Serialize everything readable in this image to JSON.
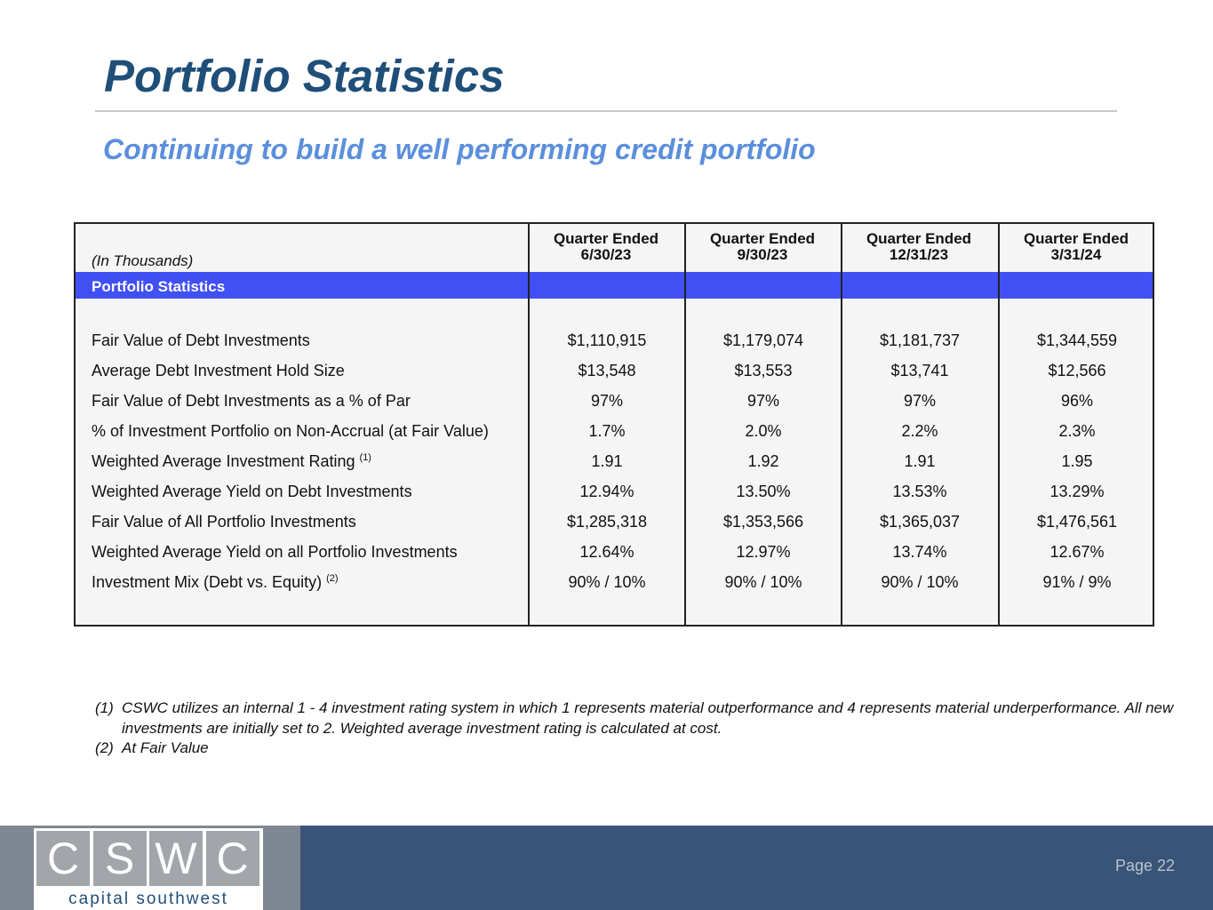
{
  "title": "Portfolio Statistics",
  "subtitle": "Continuing to build a well performing credit portfolio",
  "table": {
    "unit_label": "(In Thousands)",
    "section_label": "Portfolio Statistics",
    "columns": [
      {
        "line1": "Quarter Ended",
        "line2": "6/30/23"
      },
      {
        "line1": "Quarter Ended",
        "line2": "9/30/23"
      },
      {
        "line1": "Quarter Ended",
        "line2": "12/31/23"
      },
      {
        "line1": "Quarter Ended",
        "line2": "3/31/24"
      }
    ],
    "rows": [
      {
        "label": "Fair Value of Debt Investments",
        "sup": "",
        "values": [
          "$1,110,915",
          "$1,179,074",
          "$1,181,737",
          "$1,344,559"
        ]
      },
      {
        "label": "Average Debt Investment Hold Size",
        "sup": "",
        "values": [
          "$13,548",
          "$13,553",
          "$13,741",
          "$12,566"
        ]
      },
      {
        "label": "Fair Value of Debt Investments as a % of Par",
        "sup": "",
        "values": [
          "97%",
          "97%",
          "97%",
          "96%"
        ]
      },
      {
        "label": "% of Investment Portfolio on Non-Accrual (at Fair Value)",
        "sup": "",
        "values": [
          "1.7%",
          "2.0%",
          "2.2%",
          "2.3%"
        ]
      },
      {
        "label": "Weighted Average Investment Rating ",
        "sup": "(1)",
        "values": [
          "1.91",
          "1.92",
          "1.91",
          "1.95"
        ]
      },
      {
        "label": "Weighted Average Yield on Debt Investments",
        "sup": "",
        "values": [
          "12.94%",
          "13.50%",
          "13.53%",
          "13.29%"
        ]
      },
      {
        "label": "Fair Value of All Portfolio Investments",
        "sup": "",
        "values": [
          "$1,285,318",
          "$1,353,566",
          "$1,365,037",
          "$1,476,561"
        ]
      },
      {
        "label": "Weighted Average Yield on all Portfolio Investments",
        "sup": "",
        "values": [
          "12.64%",
          "12.97%",
          "13.74%",
          "12.67%"
        ]
      },
      {
        "label": "Investment Mix (Debt vs. Equity) ",
        "sup": "(2)",
        "values": [
          "90% / 10%",
          "90% / 10%",
          "90% / 10%",
          "91% / 9%"
        ]
      }
    ]
  },
  "notes": [
    {
      "num": "(1)",
      "text": "CSWC utilizes an internal 1 - 4 investment rating system in which 1 represents material outperformance and 4 represents material underperformance.  All new investments are initially set to 2.  Weighted average investment rating is calculated at cost."
    },
    {
      "num": "(2)",
      "text": "At Fair Value"
    }
  ],
  "footer": {
    "logo_letters": [
      "C",
      "S",
      "W",
      "C"
    ],
    "logo_text": "capital southwest",
    "page": "Page 22"
  },
  "colors": {
    "title": "#1f4e79",
    "subtitle": "#5b8fdc",
    "band": "#4150f5",
    "footer": "#3a5478"
  }
}
